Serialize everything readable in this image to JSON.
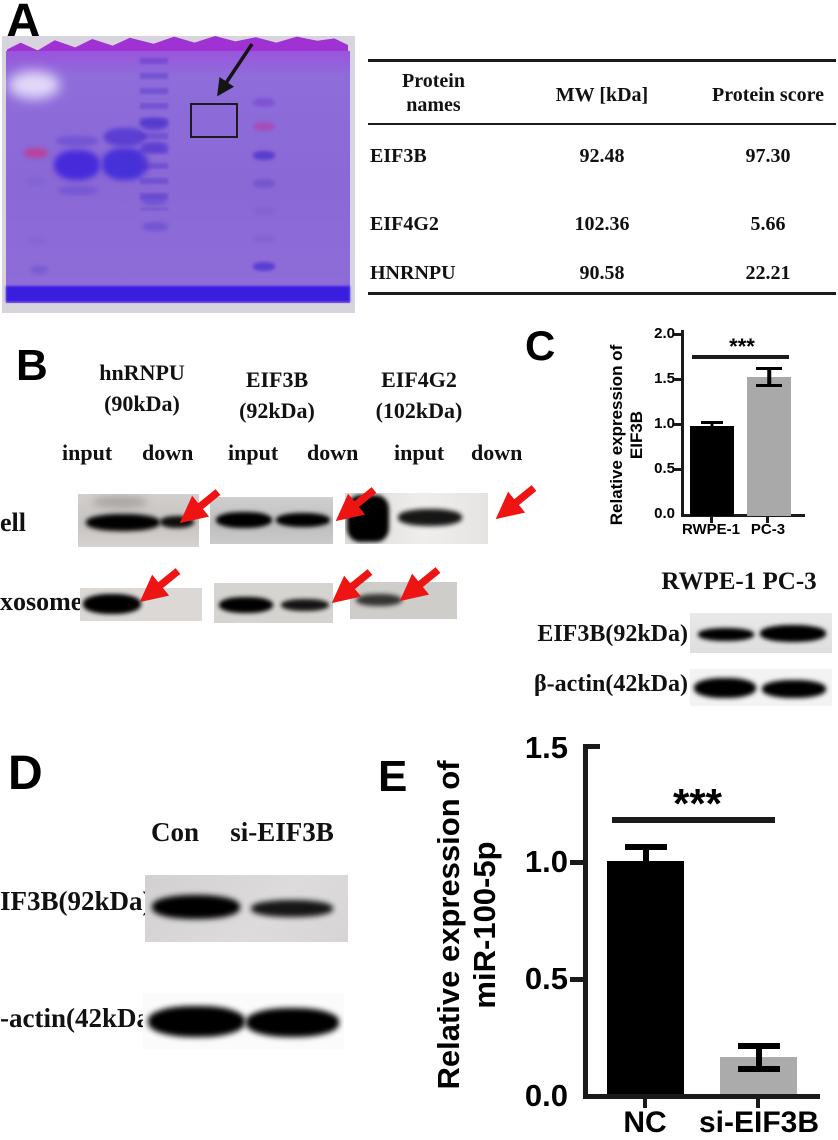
{
  "figure_labels": {
    "a": "A",
    "b": "B",
    "c": "C",
    "d": "D",
    "e": "E"
  },
  "panelA": {
    "table": {
      "col_headers": [
        "Protein names",
        "MW [kDa]",
        "Protein score"
      ],
      "rows": [
        {
          "name": "EIF3B",
          "mw": "92.48",
          "score": "97.30"
        },
        {
          "name": "EIF4G2",
          "mw": "102.36",
          "score": "5.66"
        },
        {
          "name": "HNRNPU",
          "mw": "90.58",
          "score": "22.21"
        }
      ]
    }
  },
  "panelB": {
    "group_headers": [
      {
        "name": "hnRNPU",
        "size": "(90kDa)"
      },
      {
        "name": "EIF3B",
        "size": "(92kDa)"
      },
      {
        "name": "EIF4G2",
        "size": "(102kDa)"
      }
    ],
    "lane_labels": [
      "input",
      "down",
      "input",
      "down",
      "input",
      "down"
    ],
    "row_labels": [
      "ell",
      "xosome"
    ]
  },
  "panelC_blot": {
    "header": "RWPE-1 PC-3",
    "row_labels": [
      "EIF3B(92kDa)",
      "β-actin(42kDa)"
    ]
  },
  "panelD": {
    "col_labels": [
      "Con",
      "si-EIF3B"
    ],
    "row_labels": [
      "IF3B(92kDa)",
      "-actin(42kDa)"
    ]
  },
  "chart_data": [
    {
      "panel": "C",
      "type": "bar",
      "ylabel": "Relative expression of EIF3B",
      "categories": [
        "RWPE-1",
        "PC-3"
      ],
      "values": [
        1.0,
        1.55
      ],
      "errors": [
        0.03,
        0.1
      ],
      "bar_colors": [
        "#000000",
        "#a9a9a9"
      ],
      "yticks": [
        "2.0",
        "1.5",
        "1.0",
        "0.5",
        "0.0"
      ],
      "ylim": [
        0,
        2.0
      ],
      "significance": "***",
      "grid": false,
      "legend": "none"
    },
    {
      "panel": "E",
      "type": "bar",
      "ylabel": "Relative expression of miR-100-5p",
      "ylabel_lines": [
        "Relative expression of",
        "miR-100-5p"
      ],
      "categories": [
        "NC",
        "si-EIF3B"
      ],
      "values": [
        1.0,
        0.16
      ],
      "errors": [
        0.06,
        0.04
      ],
      "bar_colors": [
        "#000000",
        "#ababab"
      ],
      "yticks": [
        "1.5",
        "1.0",
        "0.5",
        "0.0"
      ],
      "ylim": [
        0,
        1.5
      ],
      "significance": "***",
      "grid": false,
      "legend": "none"
    }
  ],
  "colors": {
    "gel_purple": "#8a68d6",
    "gel_torn_top": "#a032d4",
    "gel_strong_band": "#4630d8",
    "gel_bottom_band": "#3a1ee0",
    "marker_pink": "#b8439c",
    "red_arrow": "#ee1414",
    "bar_black": "#000000",
    "bar_gray": "#a9a9a9"
  }
}
